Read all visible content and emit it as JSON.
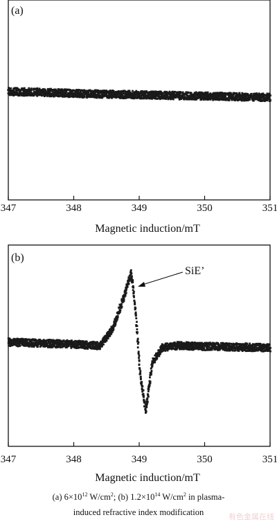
{
  "chart_data": [
    {
      "type": "scatter",
      "panel_label": "(a)",
      "xlabel": "Magnetic induction/mT",
      "ylabel": "",
      "xlim": [
        347,
        351
      ],
      "x_ticks": [
        "347",
        "348",
        "349",
        "350",
        "351"
      ],
      "grid": false,
      "series": [
        {
          "x": [
            347.0,
            347.5,
            348.0,
            348.5,
            349.0,
            349.5,
            350.0,
            350.5,
            351.0
          ],
          "y": [
            0.14,
            0.13,
            0.11,
            0.1,
            0.09,
            0.08,
            0.07,
            0.06,
            0.05
          ]
        }
      ]
    },
    {
      "type": "scatter",
      "panel_label": "(b)",
      "xlabel": "Magnetic induction/mT",
      "ylabel": "",
      "xlim": [
        347,
        351
      ],
      "x_ticks": [
        "347",
        "348",
        "349",
        "350",
        "351"
      ],
      "grid": false,
      "annotation": "SiE’",
      "series": [
        {
          "x": [
            347.0,
            348.0,
            348.4,
            348.6,
            348.75,
            348.88,
            348.95,
            349.02,
            349.1,
            349.2,
            349.35,
            349.6,
            350.0,
            351.0
          ],
          "y": [
            0.0,
            -0.03,
            -0.05,
            0.2,
            0.6,
            1.0,
            0.4,
            -0.5,
            -1.0,
            -0.3,
            -0.08,
            -0.05,
            -0.06,
            -0.08
          ]
        }
      ]
    }
  ],
  "caption": {
    "line1_a": "(a)  6×10",
    "line1_a_exp": "12",
    "line1_b": "  W/cm",
    "line1_b_exp": "2",
    "line1_c": ";  (b)  1.2×10",
    "line1_c_exp": "14",
    "line1_d": "  W/cm",
    "line1_d_exp": "2",
    "line1_e": "  in  plasma-",
    "line2": "induced refractive index modification"
  },
  "watermark": "有色金属在线"
}
